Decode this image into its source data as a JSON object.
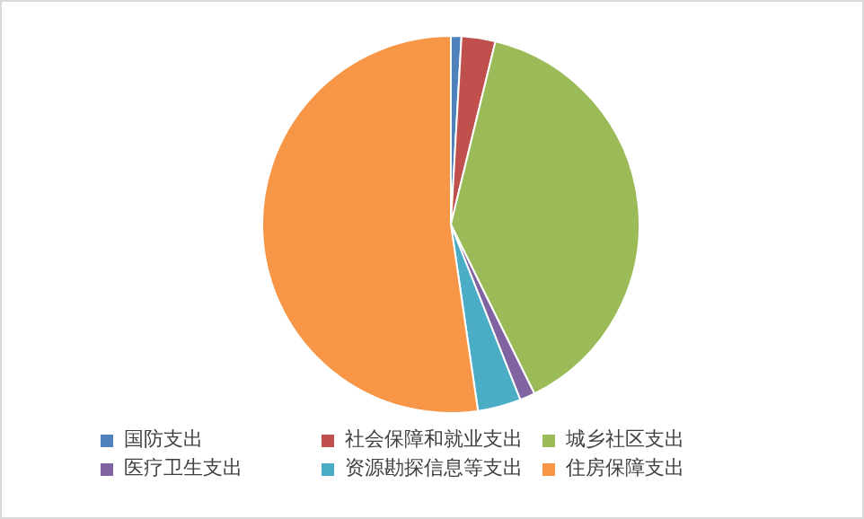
{
  "chart_data": {
    "type": "pie",
    "categories": [
      "国防支出",
      "社会保障和就业支出",
      "城乡社区支出",
      "医疗卫生支出",
      "资源勘探信息等支出",
      "住房保障支出"
    ],
    "values": [
      0.9,
      2.9,
      38.9,
      1.3,
      3.7,
      52.3
    ],
    "colors": [
      "#4f81bd",
      "#c0504d",
      "#9bbb59",
      "#8064a2",
      "#4bacc6",
      "#f79646"
    ],
    "legend": "bottom"
  }
}
